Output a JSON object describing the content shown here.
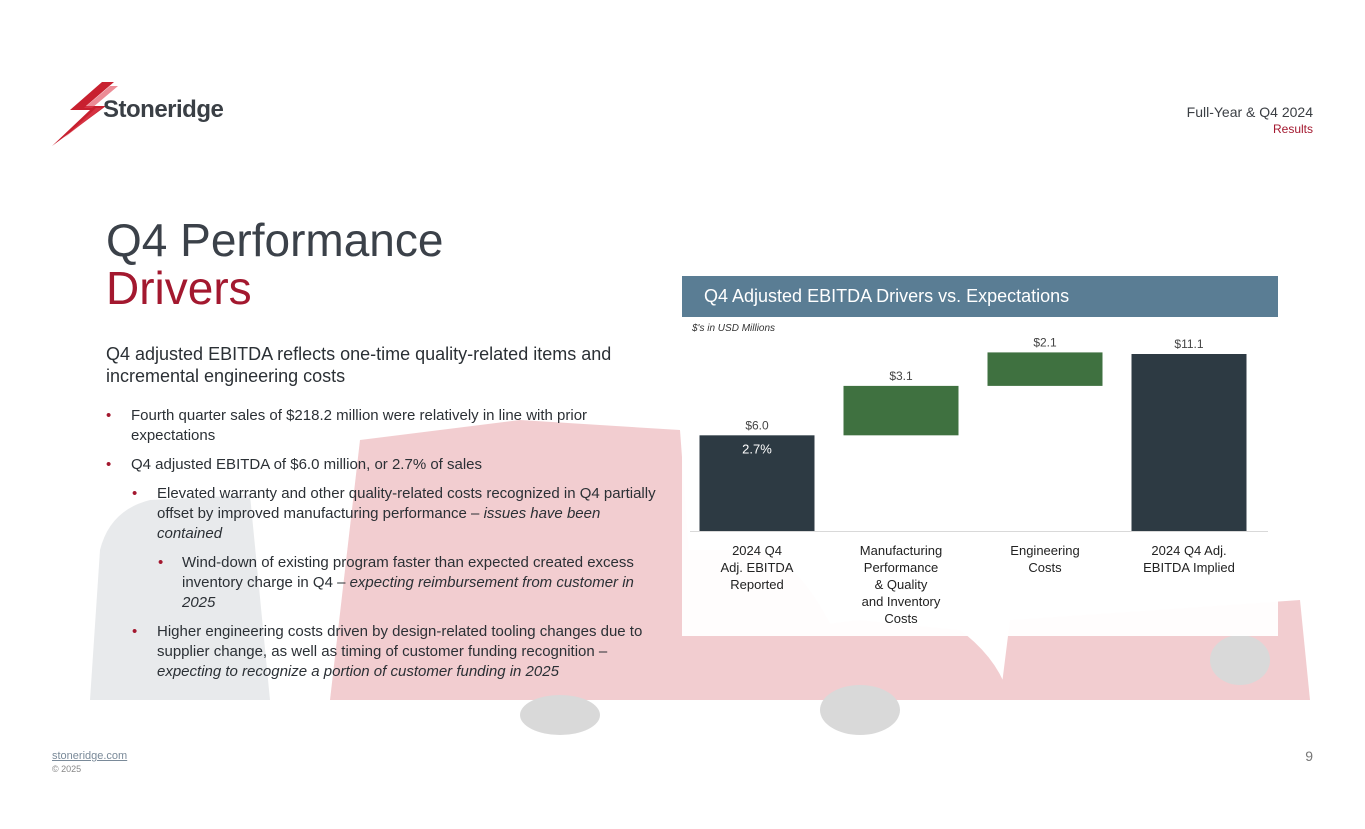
{
  "brand": {
    "name": "Stoneridge",
    "red": "#a3182f",
    "slate": "#3b4149"
  },
  "header": {
    "line1": "Full-Year & Q4 2024",
    "line2": "Results"
  },
  "title": {
    "line1": "Q4 Performance",
    "line2": "Drivers"
  },
  "subhead": "Q4 adjusted EBITDA reflects one-time quality-related items and incremental engineering costs",
  "bullets": {
    "b1": "Fourth quarter sales of $218.2 million were relatively in line with prior expectations",
    "b2": "Q4 adjusted EBITDA of $6.0 million, or 2.7% of sales",
    "b3_text": "Elevated warranty and other quality-related costs recognized in Q4 partially offset by improved manufacturing performance – ",
    "b3_italic": "issues have been contained",
    "b4_text": "Wind-down of existing program faster than expected created excess inventory charge in Q4 – ",
    "b4_italic": "expecting reimbursement from customer in 2025",
    "b5_text": "Higher engineering costs driven by design-related tooling changes due to supplier change, as well as timing of customer funding recognition – ",
    "b5_italic": "expecting to recognize a portion of customer funding in 2025",
    "bullet_char": "•"
  },
  "chart_panel": {
    "title": "Q4 Adjusted EBITDA Drivers vs. Expectations",
    "units": "$'s in USD Millions"
  },
  "chart_data": {
    "type": "bar",
    "subtype": "waterfall",
    "categories": [
      "2024 Q4\nAdj. EBITDA\nReported",
      "Manufacturing\nPerformance\n& Quality\nand Inventory\nCosts",
      "Engineering\nCosts",
      "2024 Q4 Adj.\nEBITDA Implied"
    ],
    "values": [
      6.0,
      3.1,
      2.1,
      11.1
    ],
    "value_labels": [
      "$6.0",
      "$3.1",
      "$2.1",
      "$11.1"
    ],
    "bar_kinds": [
      "total",
      "increment",
      "increment",
      "total"
    ],
    "inner_label": {
      "index": 0,
      "text": "2.7%"
    },
    "colors": {
      "total": "#2d3a43",
      "increment": "#3f7140"
    },
    "ylim": [
      0,
      11.1
    ],
    "grid": false,
    "legend": "none"
  },
  "footer": {
    "link": "stoneridge.com",
    "copyright": "© 2025",
    "page": "9"
  }
}
